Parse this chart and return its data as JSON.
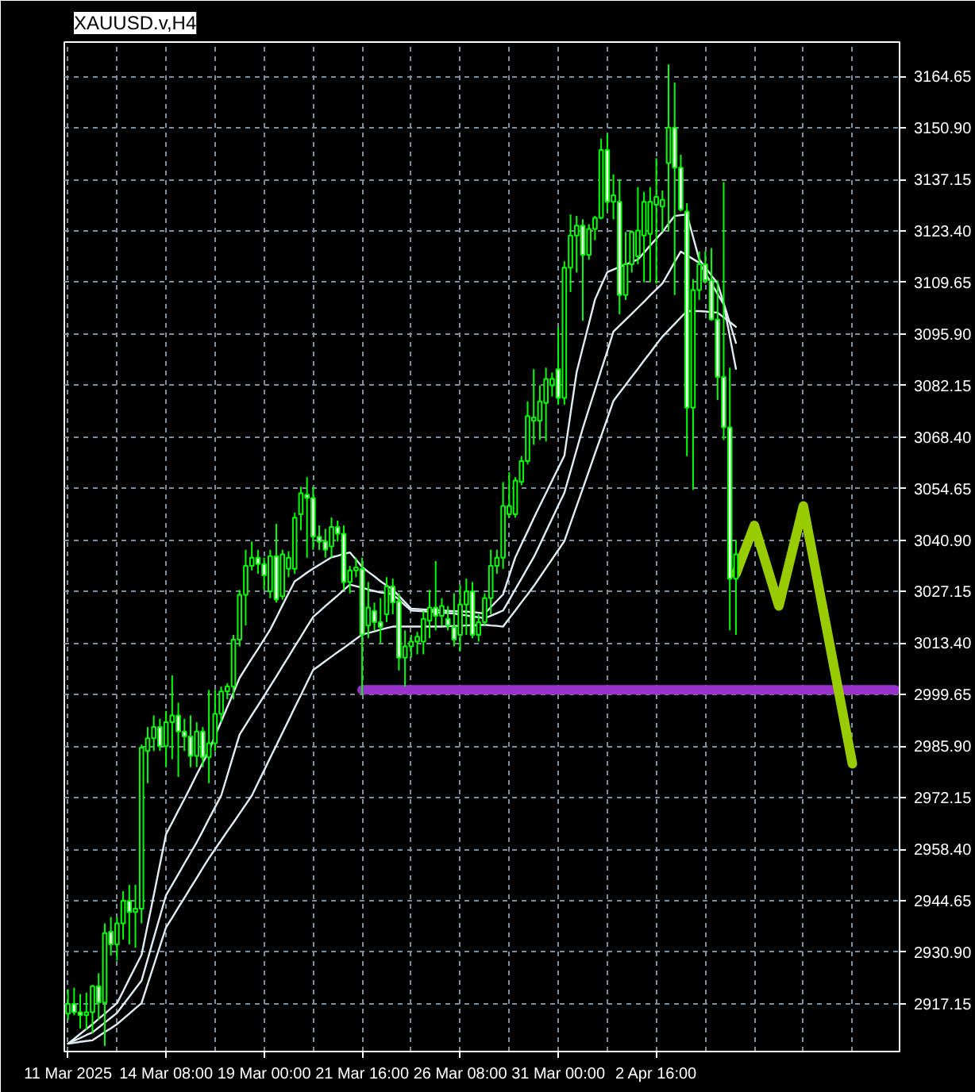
{
  "chart_data": {
    "type": "candlestick",
    "title": "XAUUSD.v,H4",
    "color": "#00ff00",
    "grid": true,
    "ylim": [
      2904.4,
      3173.8
    ],
    "yticks": [
      {
        "value": 2917.15,
        "label": "2917.15"
      },
      {
        "value": 2930.9,
        "label": "2930.90"
      },
      {
        "value": 2944.65,
        "label": "2944.65"
      },
      {
        "value": 2958.4,
        "label": "2958.40"
      },
      {
        "value": 2972.15,
        "label": "2972.15"
      },
      {
        "value": 2985.9,
        "label": "2985.90"
      },
      {
        "value": 2999.65,
        "label": "2999.65"
      },
      {
        "value": 3013.4,
        "label": "3013.40"
      },
      {
        "value": 3027.15,
        "label": "3027.15"
      },
      {
        "value": 3040.9,
        "label": "3040.90"
      },
      {
        "value": 3054.65,
        "label": "3054.65"
      },
      {
        "value": 3068.4,
        "label": "3068.40"
      },
      {
        "value": 3082.15,
        "label": "3082.15"
      },
      {
        "value": 3095.9,
        "label": "3095.90"
      },
      {
        "value": 3109.65,
        "label": "3109.65"
      },
      {
        "value": 3123.4,
        "label": "3123.40"
      },
      {
        "value": 3137.15,
        "label": "3137.15"
      },
      {
        "value": 3150.9,
        "label": "3150.90"
      },
      {
        "value": 3164.65,
        "label": "3164.65"
      }
    ],
    "categories": [
      "11 Mar 2025",
      null,
      null,
      null,
      null,
      null,
      null,
      null,
      null,
      null,
      null,
      null,
      null,
      null,
      null,
      null,
      "14 Mar 08:00",
      null,
      null,
      null,
      null,
      null,
      null,
      null,
      null,
      null,
      null,
      null,
      null,
      null,
      null,
      null,
      "19 Mar 00:00",
      null,
      null,
      null,
      null,
      null,
      null,
      null,
      null,
      null,
      null,
      null,
      null,
      null,
      null,
      null,
      "21 Mar 16:00",
      null,
      null,
      null,
      null,
      null,
      null,
      null,
      null,
      null,
      null,
      null,
      null,
      null,
      null,
      null,
      "26 Mar 08:00",
      null,
      null,
      null,
      null,
      null,
      null,
      null,
      null,
      null,
      null,
      null,
      null,
      null,
      null,
      null,
      "31 Mar 00:00",
      null,
      null,
      null,
      null,
      null,
      null,
      null,
      null,
      null,
      null,
      null,
      null,
      null,
      null,
      null,
      "2 Apr 16:00",
      null,
      null,
      null,
      null,
      null,
      null,
      null,
      null,
      null,
      null,
      null,
      null,
      null,
      null,
      null,
      null,
      null,
      null,
      null,
      null,
      null,
      null,
      null,
      null,
      null,
      null,
      null,
      null,
      null,
      null,
      null,
      null,
      null,
      null,
      null,
      null,
      null,
      null,
      null
    ],
    "ohlc": [
      [
        2914.5,
        2921.0,
        2912.8,
        2917.1
      ],
      [
        2917.1,
        2921.4,
        2914.1,
        2914.9
      ],
      [
        2914.9,
        2919.7,
        2910.6,
        2914.1
      ],
      [
        2914.1,
        2920.1,
        2910.2,
        2914.9
      ],
      [
        2914.9,
        2922.2,
        2909.3,
        2921.8
      ],
      [
        2921.8,
        2925.3,
        2912.8,
        2917.5
      ],
      [
        2917.5,
        2938.6,
        2905.9,
        2936.0
      ],
      [
        2936.4,
        2940.3,
        2930.0,
        2933.0
      ],
      [
        2933.0,
        2940.3,
        2928.7,
        2938.6
      ],
      [
        2938.6,
        2947.2,
        2934.3,
        2944.6
      ],
      [
        2944.6,
        2948.9,
        2933.0,
        2941.6
      ],
      [
        2941.6,
        2948.9,
        2932.1,
        2942.5
      ],
      [
        2942.5,
        2986.3,
        2938.6,
        2985.5
      ],
      [
        2984.6,
        2991.0,
        2976.0,
        2988.0
      ],
      [
        2988.0,
        2994.1,
        2984.6,
        2991.0
      ],
      [
        2991.0,
        2993.2,
        2984.6,
        2985.9
      ],
      [
        2985.9,
        2995.3,
        2980.3,
        2992.3
      ],
      [
        2992.3,
        3004.8,
        2982.4,
        2994.1
      ],
      [
        2994.1,
        2997.5,
        2977.7,
        2989.8
      ],
      [
        2989.8,
        2993.2,
        2984.6,
        2988.5
      ],
      [
        2988.5,
        2994.1,
        2980.3,
        2983.3
      ],
      [
        2983.3,
        2992.3,
        2980.3,
        2989.8
      ],
      [
        2989.8,
        2991.0,
        2980.3,
        2982.9
      ],
      [
        2982.9,
        3000.9,
        2976.0,
        2986.7
      ],
      [
        2986.7,
        3000.9,
        2984.6,
        2994.5
      ],
      [
        2994.5,
        3001.8,
        2992.3,
        3000.5
      ],
      [
        3000.5,
        3002.7,
        2998.4,
        3001.8
      ],
      [
        3001.8,
        3015.6,
        2998.4,
        3014.3
      ],
      [
        3014.3,
        3027.6,
        3012.5,
        3026.3
      ],
      [
        3026.3,
        3038.3,
        3018.1,
        3034.0
      ],
      [
        3034.0,
        3040.5,
        3032.8,
        3036.2
      ],
      [
        3036.2,
        3038.3,
        3031.9,
        3034.5
      ],
      [
        3034.5,
        3036.2,
        3027.6,
        3031.5
      ],
      [
        3027.2,
        3038.3,
        3025.4,
        3036.6
      ],
      [
        3036.6,
        3045.2,
        3024.2,
        3025.0
      ],
      [
        3025.9,
        3038.3,
        3025.0,
        3037.1
      ],
      [
        3033.2,
        3037.9,
        3031.0,
        3036.2
      ],
      [
        3033.2,
        3048.2,
        3031.9,
        3046.9
      ],
      [
        3047.8,
        3055.1,
        3043.5,
        3053.4
      ],
      [
        3053.0,
        3057.7,
        3036.2,
        3052.1
      ],
      [
        3052.1,
        3055.1,
        3038.3,
        3041.8
      ],
      [
        3041.8,
        3044.8,
        3038.3,
        3040.5
      ],
      [
        3040.5,
        3043.9,
        3036.2,
        3038.3
      ],
      [
        3039.2,
        3046.9,
        3036.2,
        3044.4
      ],
      [
        3044.4,
        3046.1,
        3040.5,
        3042.6
      ],
      [
        3042.6,
        3044.8,
        3027.6,
        3029.7
      ],
      [
        3029.7,
        3034.0,
        3026.7,
        3032.8
      ],
      [
        3032.8,
        3036.2,
        3031.0,
        3033.6
      ],
      [
        3033.2,
        3036.2,
        2999.6,
        3015.6
      ],
      [
        3018.1,
        3029.7,
        3014.7,
        3022.9
      ],
      [
        3022.0,
        3024.2,
        3016.8,
        3019.0
      ],
      [
        3019.0,
        3025.4,
        3013.4,
        3017.7
      ],
      [
        3021.1,
        3031.0,
        3019.0,
        3028.5
      ],
      [
        3028.5,
        3030.6,
        3021.1,
        3024.2
      ],
      [
        3024.6,
        3026.7,
        3006.1,
        3009.5
      ],
      [
        3009.5,
        3016.8,
        3001.8,
        3012.5
      ],
      [
        3012.5,
        3015.6,
        3009.5,
        3013.8
      ],
      [
        3013.8,
        3016.4,
        3010.4,
        3015.1
      ],
      [
        3013.8,
        3022.0,
        3010.4,
        3019.9
      ],
      [
        3019.4,
        3027.6,
        3014.7,
        3022.9
      ],
      [
        3022.9,
        3035.3,
        3016.8,
        3020.7
      ],
      [
        3020.7,
        3025.4,
        3018.1,
        3023.3
      ],
      [
        3019.9,
        3023.3,
        3016.8,
        3018.1
      ],
      [
        3017.7,
        3026.7,
        3012.5,
        3014.3
      ],
      [
        3015.6,
        3028.9,
        3011.3,
        3023.7
      ],
      [
        3023.7,
        3030.6,
        3015.6,
        3027.2
      ],
      [
        3027.2,
        3029.7,
        3014.7,
        3015.6
      ],
      [
        3015.6,
        3021.1,
        3013.8,
        3019.0
      ],
      [
        3019.0,
        3026.7,
        3018.1,
        3025.4
      ],
      [
        3025.4,
        3038.3,
        3021.1,
        3034.0
      ],
      [
        3034.0,
        3038.3,
        3031.9,
        3036.2
      ],
      [
        3036.2,
        3056.4,
        3033.2,
        3050.0
      ],
      [
        3047.8,
        3059.0,
        3046.9,
        3050.0
      ],
      [
        3047.8,
        3057.7,
        3046.9,
        3056.8
      ],
      [
        3056.4,
        3063.3,
        3055.5,
        3062.0
      ],
      [
        3062.0,
        3077.9,
        3061.1,
        3074.0
      ],
      [
        3072.7,
        3086.5,
        3066.3,
        3073.6
      ],
      [
        3072.7,
        3082.2,
        3067.6,
        3077.9
      ],
      [
        3077.5,
        3086.9,
        3067.2,
        3083.9
      ],
      [
        3082.2,
        3085.6,
        3079.2,
        3083.9
      ],
      [
        3086.5,
        3097.7,
        3077.0,
        3078.8
      ],
      [
        3078.8,
        3115.3,
        3077.0,
        3113.6
      ],
      [
        3113.6,
        3127.8,
        3107.1,
        3122.2
      ],
      [
        3122.2,
        3127.4,
        3112.3,
        3124.8
      ],
      [
        3124.8,
        3126.5,
        3099.4,
        3117.0
      ],
      [
        3117.0,
        3125.2,
        3115.7,
        3123.9
      ],
      [
        3123.9,
        3127.4,
        3120.9,
        3126.9
      ],
      [
        3126.9,
        3148.0,
        3126.5,
        3145.0
      ],
      [
        3145.0,
        3149.3,
        3128.6,
        3131.2
      ],
      [
        3131.2,
        3138.5,
        3126.5,
        3132.9
      ],
      [
        3131.2,
        3137.2,
        3101.1,
        3106.3
      ],
      [
        3106.3,
        3123.1,
        3105.0,
        3114.5
      ],
      [
        3114.5,
        3123.5,
        3112.3,
        3123.1
      ],
      [
        3116.6,
        3135.1,
        3114.5,
        3123.5
      ],
      [
        3122.2,
        3133.8,
        3109.7,
        3131.2
      ],
      [
        3122.6,
        3135.1,
        3109.7,
        3131.2
      ],
      [
        3130.4,
        3142.8,
        3109.3,
        3132.5
      ],
      [
        3129.9,
        3134.2,
        3123.1,
        3131.7
      ],
      [
        3141.5,
        3167.8,
        3123.5,
        3151.0
      ],
      [
        3151.0,
        3163.0,
        3106.3,
        3140.3
      ],
      [
        3140.3,
        3143.7,
        3128.6,
        3129.1
      ],
      [
        3128.6,
        3130.8,
        3063.3,
        3076.2
      ],
      [
        3076.2,
        3110.6,
        3054.3,
        3107.6
      ],
      [
        3107.6,
        3117.9,
        3105.0,
        3114.5
      ],
      [
        3114.5,
        3117.9,
        3109.3,
        3110.2
      ],
      [
        3110.2,
        3118.8,
        3099.4,
        3099.8
      ],
      [
        3099.8,
        3110.2,
        3078.3,
        3084.4
      ],
      [
        3084.4,
        3136.4,
        3067.6,
        3071.0
      ],
      [
        3071.0,
        3086.9,
        3016.8,
        3030.6
      ],
      [
        3030.6,
        3040.9,
        3015.6,
        3037.1
      ],
      null,
      null,
      null,
      null,
      null,
      null,
      null,
      null,
      null,
      null,
      null,
      null,
      null,
      null,
      null,
      null,
      null,
      null,
      null,
      null,
      null,
      null,
      null,
      null,
      null,
      null
    ],
    "series": [
      {
        "type": "line",
        "color": "#e0eef4",
        "values": [
          2906.5,
          2907.8,
          2909.1,
          2910.4,
          2911.7,
          2913.1,
          2914.5,
          2915.9,
          2917.3,
          2920.5,
          2923.8,
          2927.0,
          2930.2,
          2938.2,
          2946.1,
          2954.3,
          2962.4,
          2965.5,
          2968.7,
          2971.8,
          2975.0,
          2978.3,
          2981.5,
          2984.7,
          2988.6,
          2992.5,
          2996.3,
          3000.2,
          3004.1,
          3006.7,
          3009.3,
          3011.8,
          3014.4,
          3017.0,
          3020.2,
          3023.5,
          3026.7,
          3029.9,
          3031.0,
          3032.2,
          3033.3,
          3034.3,
          3035.3,
          3036.3,
          3036.7,
          3037.2,
          3037.6,
          3035.7,
          3033.7,
          3032.4,
          3031.2,
          3029.9,
          3028.8,
          3027.7,
          3026.0,
          3024.3,
          3022.6,
          3022.5,
          3022.4,
          3022.3,
          3022.2,
          3022.1,
          3022.0,
          3021.9,
          3021.9,
          3021.8,
          3021.7,
          3021.5,
          3021.3,
          3023.0,
          3024.7,
          3026.4,
          3031.4,
          3036.3,
          3039.8,
          3043.2,
          3046.7,
          3050.1,
          3053.4,
          3056.8,
          3060.1,
          3063.4,
          3074.6,
          3085.7,
          3092.2,
          3098.6,
          3105.1,
          3108.8,
          3112.4,
          3113.1,
          3113.8,
          3114.4,
          3115.1,
          3115.8,
          3117.6,
          3119.5,
          3121.3,
          3123.1,
          3125.3,
          3127.4,
          3127.6,
          3127.8,
          3121.8,
          3115.8,
          3113.7,
          3111.5,
          3109.4,
          3104.1,
          3098.8,
          3093.5,
          null,
          null,
          null,
          null,
          null,
          null,
          null,
          null,
          null,
          null,
          null,
          null,
          null,
          null,
          null,
          null,
          null,
          null,
          null,
          null,
          null,
          null,
          null,
          null,
          null,
          null
        ]
      },
      {
        "type": "line",
        "color": "#e0eef4",
        "values": [
          2906.5,
          2907.3,
          2908.0,
          2908.8,
          2909.5,
          2910.8,
          2912.1,
          2913.4,
          2914.7,
          2916.9,
          2919.0,
          2921.2,
          2923.3,
          2929.0,
          2934.7,
          2940.4,
          2946.1,
          2948.9,
          2951.7,
          2954.6,
          2957.4,
          2960.2,
          2963.3,
          2966.5,
          2969.6,
          2972.7,
          2978.1,
          2983.6,
          2989.0,
          2991.6,
          2994.2,
          2996.7,
          2999.3,
          3001.9,
          3004.5,
          3007.2,
          3009.8,
          3012.5,
          3015.1,
          3017.8,
          3020.4,
          3021.8,
          3023.3,
          3024.7,
          3026.1,
          3027.6,
          3029.0,
          3028.6,
          3028.2,
          3027.7,
          3027.3,
          3026.9,
          3026.7,
          3026.4,
          3025.0,
          3023.5,
          3022.1,
          3022.0,
          3021.9,
          3021.8,
          3021.6,
          3021.5,
          3021.4,
          3021.3,
          3021.0,
          3020.8,
          3020.5,
          3020.3,
          3020.0,
          3020.7,
          3021.4,
          3022.1,
          3024.9,
          3027.8,
          3030.6,
          3033.5,
          3036.3,
          3039.7,
          3043.2,
          3046.6,
          3050.1,
          3053.5,
          3059.2,
          3065.0,
          3070.7,
          3075.9,
          3081.0,
          3086.2,
          3091.3,
          3096.5,
          3098.1,
          3099.7,
          3101.3,
          3102.9,
          3104.5,
          3106.2,
          3107.8,
          3109.4,
          3112.2,
          3115.1,
          3117.9,
          3116.9,
          3115.9,
          3114.9,
          3112.1,
          3109.4,
          3106.6,
          3103.8,
          3095.2,
          3086.6,
          null,
          null,
          null,
          null,
          null,
          null,
          null,
          null,
          null,
          null,
          null,
          null,
          null,
          null,
          null,
          null,
          null,
          null,
          null,
          null,
          null,
          null,
          null,
          null,
          null,
          null
        ]
      },
      {
        "type": "line",
        "color": "#e0eef4",
        "values": [
          2906.5,
          2906.7,
          2907.0,
          2907.2,
          2907.4,
          2908.5,
          2909.6,
          2910.6,
          2911.7,
          2913.1,
          2914.5,
          2915.9,
          2917.3,
          2922.4,
          2927.4,
          2932.5,
          2937.5,
          2940.1,
          2942.8,
          2945.4,
          2948.1,
          2950.7,
          2953.4,
          2956.0,
          2958.4,
          2960.8,
          2963.2,
          2965.5,
          2967.9,
          2970.3,
          2972.7,
          2976.1,
          2979.4,
          2982.8,
          2986.1,
          2989.5,
          2992.8,
          2996.2,
          2999.5,
          3002.9,
          3006.2,
          3007.4,
          3008.6,
          3009.8,
          3011.0,
          3012.1,
          3013.3,
          3014.5,
          3015.7,
          3016.1,
          3016.5,
          3017.0,
          3017.4,
          3017.8,
          3017.8,
          3017.8,
          3017.8,
          3017.8,
          3017.8,
          3017.8,
          3017.8,
          3017.8,
          3017.9,
          3018.0,
          3018.0,
          3018.1,
          3018.2,
          3018.2,
          3018.3,
          3018.1,
          3018.0,
          3017.8,
          3020.0,
          3022.1,
          3024.3,
          3026.4,
          3028.6,
          3031.0,
          3033.4,
          3035.8,
          3038.2,
          3040.6,
          3045.3,
          3050.0,
          3054.6,
          3059.3,
          3064.0,
          3068.6,
          3073.3,
          3078.0,
          3080.2,
          3082.3,
          3084.5,
          3086.6,
          3088.8,
          3090.9,
          3093.1,
          3095.2,
          3096.9,
          3098.6,
          3100.3,
          3102.0,
          3102.0,
          3102.0,
          3101.9,
          3101.7,
          3101.6,
          3100.3,
          3099.1,
          3097.8,
          null,
          null,
          null,
          null,
          null,
          null,
          null,
          null,
          null,
          null,
          null,
          null,
          null,
          null,
          null,
          null,
          null,
          null,
          null,
          null,
          null,
          null,
          null,
          null,
          null,
          null
        ]
      },
      {
        "type": "line",
        "color": "#9933cc",
        "values": [
          null,
          null,
          null,
          null,
          null,
          null,
          null,
          null,
          null,
          null,
          null,
          null,
          null,
          null,
          null,
          null,
          null,
          null,
          null,
          null,
          null,
          null,
          null,
          null,
          null,
          null,
          null,
          null,
          null,
          null,
          null,
          null,
          null,
          null,
          null,
          null,
          null,
          null,
          null,
          null,
          null,
          null,
          null,
          null,
          null,
          null,
          null,
          null,
          3000.9,
          3000.9,
          3000.9,
          3000.9,
          3000.9,
          3000.9,
          3000.9,
          3000.9,
          3000.9,
          3000.9,
          3000.9,
          3000.9,
          3000.9,
          3000.9,
          3000.9,
          3000.9,
          3000.9,
          3000.9,
          3000.9,
          3000.9,
          3000.9,
          3000.9,
          3000.9,
          3000.9,
          3000.9,
          3000.9,
          3000.9,
          3000.9,
          3000.9,
          3000.9,
          3000.9,
          3000.9,
          3000.9,
          3000.9,
          3000.9,
          3000.9,
          3000.9,
          3000.9,
          3000.9,
          3000.9,
          3000.9,
          3000.9,
          3000.9,
          3000.9,
          3000.9,
          3000.9,
          3000.9,
          3000.9,
          3000.9,
          3000.9,
          3000.9,
          3000.9,
          3000.9,
          3000.9,
          3000.9,
          3000.9,
          3000.9,
          3000.9,
          3000.9,
          3000.9,
          3000.9,
          3000.9,
          3000.9,
          3000.9,
          3000.9,
          3000.9,
          3000.9,
          3000.9,
          3000.9,
          3000.9,
          3000.9,
          3000.9,
          3000.9,
          3000.9,
          3000.9,
          3000.9,
          3000.9,
          3000.9,
          3000.9,
          3000.9,
          3000.9,
          3000.9,
          3000.9,
          3000.9,
          3000.9,
          3000.9,
          3000.9,
          3000.9
        ]
      },
      {
        "type": "line",
        "color": "#99cc00",
        "values": [
          null,
          null,
          null,
          null,
          null,
          null,
          null,
          null,
          null,
          null,
          null,
          null,
          null,
          null,
          null,
          null,
          null,
          null,
          null,
          null,
          null,
          null,
          null,
          null,
          null,
          null,
          null,
          null,
          null,
          null,
          null,
          null,
          null,
          null,
          null,
          null,
          null,
          null,
          null,
          null,
          null,
          null,
          null,
          null,
          null,
          null,
          null,
          null,
          null,
          null,
          null,
          null,
          null,
          null,
          null,
          null,
          null,
          null,
          null,
          null,
          null,
          null,
          null,
          null,
          null,
          null,
          null,
          null,
          null,
          null,
          null,
          null,
          null,
          null,
          null,
          null,
          null,
          null,
          null,
          null,
          null,
          null,
          null,
          null,
          null,
          null,
          null,
          null,
          null,
          null,
          null,
          null,
          null,
          null,
          null,
          null,
          null,
          null,
          null,
          null,
          null,
          null,
          null,
          null,
          null,
          null,
          null,
          null,
          null,
          3031.9,
          3036.2,
          3040.5,
          3044.8,
          3039.4,
          3034.1,
          3028.7,
          3023.3,
          3030.0,
          3036.7,
          3043.3,
          3050.0,
          3041.4,
          3032.8,
          3024.2,
          3015.6,
          3007.0,
          2998.4,
          2989.8,
          2981.2,
          null,
          null,
          null,
          null,
          null,
          null,
          null
        ]
      }
    ]
  }
}
